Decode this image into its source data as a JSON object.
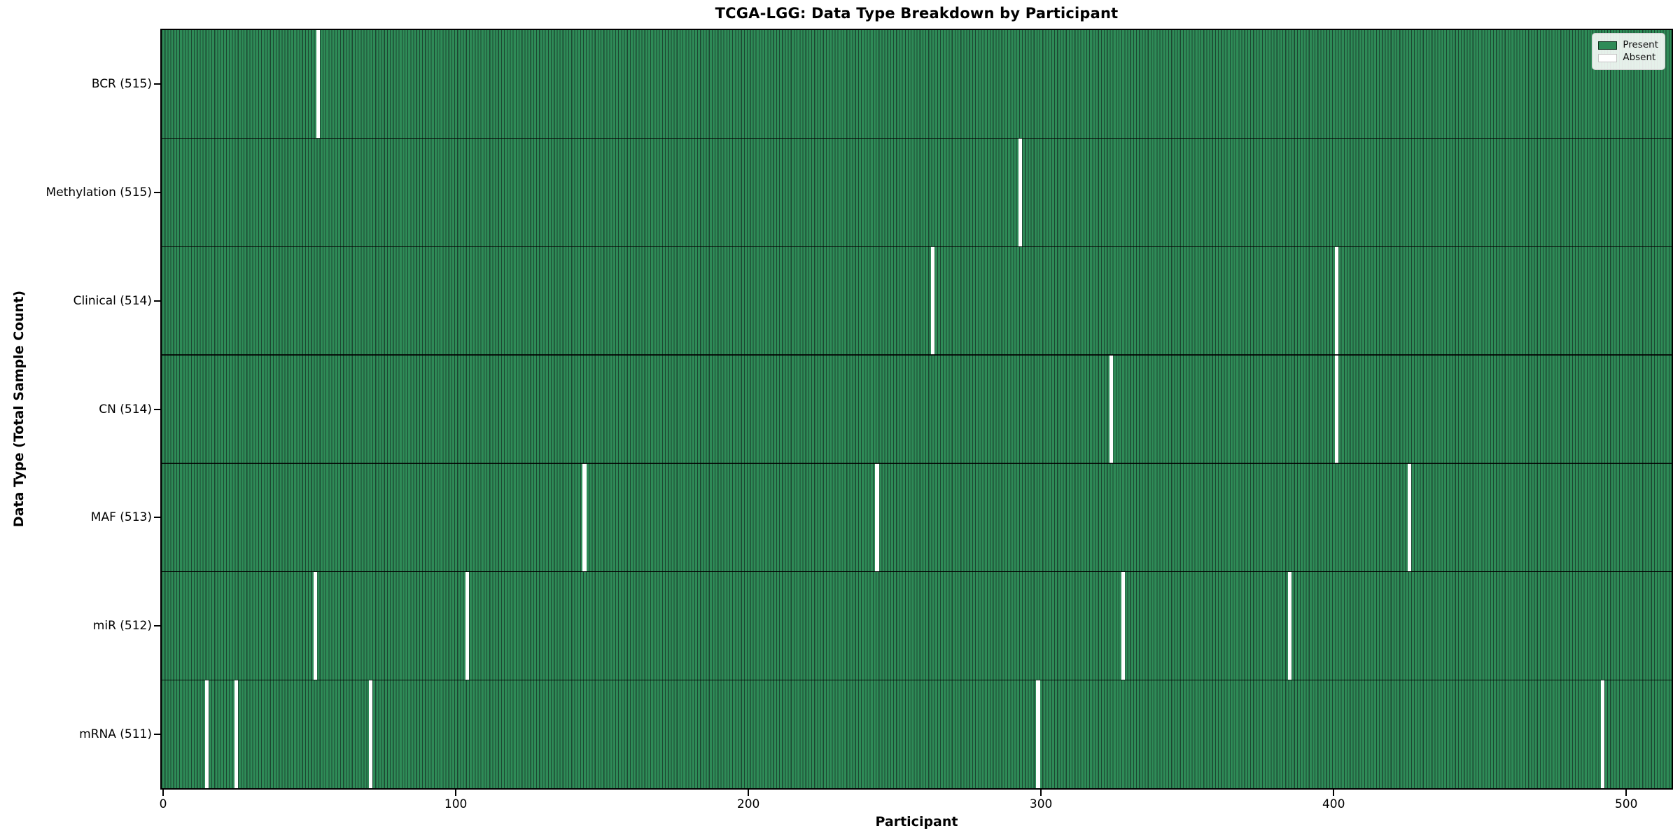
{
  "chart_data": {
    "type": "heatmap",
    "title": "TCGA-LGG: Data Type Breakdown by Participant",
    "xlabel": "Participant",
    "ylabel": "Data Type (Total Sample Count)",
    "n_participants": 516,
    "x_ticks": [
      0,
      100,
      200,
      300,
      400,
      500
    ],
    "xlim": [
      -0.5,
      515.5
    ],
    "grid": false,
    "legend": {
      "position": "upper right",
      "present_label": "Present",
      "absent_label": "Absent"
    },
    "colors": {
      "present": "#2e8b57",
      "present_edge": "#1c4631",
      "absent": "#ffffff"
    },
    "rows": [
      {
        "label": "BCR",
        "total": 515,
        "tick_label": "BCR (515)",
        "absent_participants": [
          53
        ]
      },
      {
        "label": "Methylation",
        "total": 515,
        "tick_label": "Methylation (515)",
        "absent_participants": [
          293
        ]
      },
      {
        "label": "Clinical",
        "total": 514,
        "tick_label": "Clinical (514)",
        "absent_participants": [
          263,
          401
        ]
      },
      {
        "label": "CN",
        "total": 514,
        "tick_label": "CN (514)",
        "absent_participants": [
          324,
          401
        ]
      },
      {
        "label": "MAF",
        "total": 513,
        "tick_label": "MAF (513)",
        "absent_participants": [
          144,
          244,
          426
        ]
      },
      {
        "label": "miR",
        "total": 512,
        "tick_label": "miR (512)",
        "absent_participants": [
          52,
          104,
          328,
          385
        ]
      },
      {
        "label": "mRNA",
        "total": 511,
        "tick_label": "mRNA (511)",
        "absent_participants": [
          15,
          25,
          71,
          299,
          492
        ]
      }
    ]
  }
}
